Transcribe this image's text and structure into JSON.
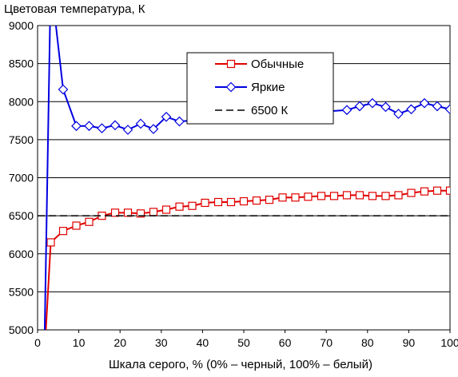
{
  "chart_data": {
    "type": "line",
    "ylabel": "Цветовая температура, К",
    "xlabel": "Шкала серого, % (0% – черный, 100% – белый)",
    "xlim": [
      0,
      100
    ],
    "ylim": [
      5000,
      9000
    ],
    "x_ticks": [
      0,
      10,
      20,
      30,
      40,
      50,
      60,
      70,
      80,
      90,
      100
    ],
    "y_ticks": [
      5000,
      5500,
      6000,
      6500,
      7000,
      7500,
      8000,
      8500,
      9000
    ],
    "grid": "horizontal",
    "legend_position": "top-right",
    "series": [
      {
        "name": "Обычные",
        "color": "#e00000",
        "marker": "square",
        "x": [
          1.7,
          3.2,
          6.2,
          9.4,
          12.5,
          15.6,
          18.8,
          21.9,
          25,
          28.1,
          31.2,
          34.4,
          37.5,
          40.6,
          43.8,
          46.9,
          50,
          53.1,
          56.2,
          59.4,
          62.5,
          65.6,
          68.8,
          71.9,
          75,
          78.1,
          81.2,
          84.4,
          87.5,
          90.6,
          93.8,
          96.9,
          100
        ],
        "y": [
          4700,
          6150,
          6300,
          6370,
          6420,
          6500,
          6540,
          6540,
          6530,
          6550,
          6580,
          6620,
          6630,
          6670,
          6680,
          6680,
          6690,
          6700,
          6710,
          6740,
          6740,
          6750,
          6760,
          6760,
          6770,
          6770,
          6760,
          6760,
          6770,
          6800,
          6820,
          6830,
          6830
        ]
      },
      {
        "name": "Яркие",
        "color": "#0000e0",
        "marker": "diamond",
        "x": [
          1.7,
          3.2,
          6.2,
          9.4,
          12.5,
          15.6,
          18.8,
          21.9,
          25,
          28.1,
          31.2,
          34.4,
          75,
          78.1,
          81.2,
          84.4,
          87.5,
          90.6,
          93.8,
          96.9,
          100
        ],
        "y": [
          4900,
          9600,
          8160,
          7680,
          7680,
          7650,
          7690,
          7630,
          7710,
          7640,
          7800,
          7740,
          7890,
          7940,
          7980,
          7930,
          7840,
          7900,
          7980,
          7940,
          7900
        ]
      },
      {
        "name": "6500 К",
        "color": "#000000",
        "style": "dashed",
        "x": [
          0,
          100
        ],
        "y": [
          6500,
          6500
        ]
      }
    ]
  }
}
